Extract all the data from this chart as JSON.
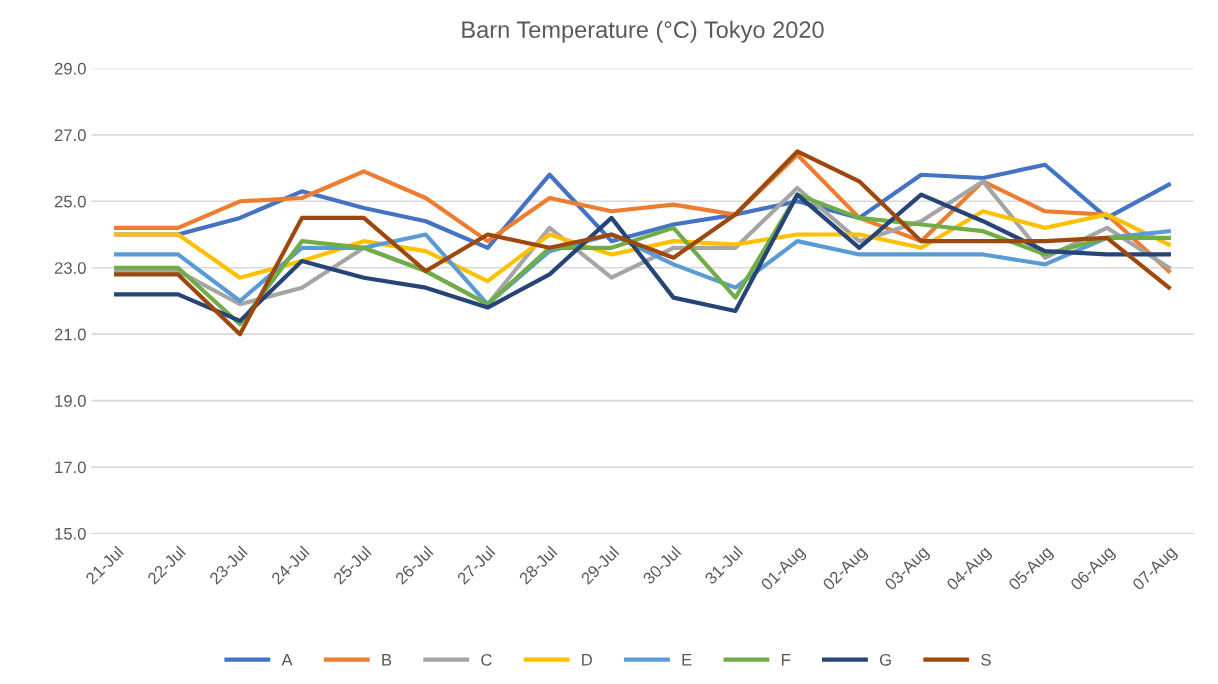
{
  "chart_data": {
    "type": "line",
    "title": "Barn Temperature (°C) Tokyo 2020",
    "categories": [
      "21-Jul",
      "22-Jul",
      "23-Jul",
      "24-Jul",
      "25-Jul",
      "26-Jul",
      "27-Jul",
      "28-Jul",
      "29-Jul",
      "30-Jul",
      "31-Jul",
      "01-Aug",
      "02-Aug",
      "03-Aug",
      "04-Aug",
      "05-Aug",
      "06-Aug",
      "07-Aug"
    ],
    "series": [
      {
        "name": "A",
        "color": "#4472c4",
        "values": [
          24.0,
          24.0,
          24.5,
          25.3,
          24.8,
          24.4,
          23.6,
          25.8,
          23.8,
          24.3,
          24.6,
          25.0,
          24.5,
          25.8,
          25.7,
          26.1,
          24.5,
          25.5
        ]
      },
      {
        "name": "B",
        "color": "#ed7d31",
        "values": [
          24.2,
          24.2,
          25.0,
          25.1,
          25.9,
          25.1,
          23.8,
          25.1,
          24.7,
          24.9,
          24.6,
          26.4,
          24.5,
          23.8,
          25.6,
          24.7,
          24.6,
          22.9
        ]
      },
      {
        "name": "C",
        "color": "#a5a5a5",
        "values": [
          22.9,
          22.9,
          21.9,
          22.4,
          23.6,
          22.9,
          21.9,
          24.2,
          22.7,
          23.6,
          23.6,
          25.4,
          23.8,
          24.4,
          25.6,
          23.3,
          24.2,
          23.0
        ]
      },
      {
        "name": "D",
        "color": "#ffc000",
        "values": [
          24.0,
          24.0,
          22.7,
          23.2,
          23.8,
          23.5,
          22.6,
          24.0,
          23.4,
          23.8,
          23.7,
          24.0,
          24.0,
          23.6,
          24.7,
          24.2,
          24.6,
          23.7
        ]
      },
      {
        "name": "E",
        "color": "#5b9bd5",
        "values": [
          23.4,
          23.4,
          22.0,
          23.6,
          23.6,
          24.0,
          21.9,
          23.5,
          24.0,
          23.1,
          22.4,
          23.8,
          23.4,
          23.4,
          23.4,
          23.1,
          23.9,
          24.1
        ]
      },
      {
        "name": "F",
        "color": "#70ad47",
        "values": [
          23.0,
          23.0,
          21.3,
          23.8,
          23.6,
          22.9,
          21.9,
          23.6,
          23.6,
          24.2,
          22.1,
          25.2,
          24.5,
          24.3,
          24.1,
          23.4,
          23.9,
          23.9
        ]
      },
      {
        "name": "G",
        "color": "#264478",
        "values": [
          22.2,
          22.2,
          21.4,
          23.2,
          22.7,
          22.4,
          21.8,
          22.8,
          24.5,
          22.1,
          21.7,
          25.2,
          23.6,
          25.2,
          24.4,
          23.5,
          23.4,
          23.4
        ]
      },
      {
        "name": "S",
        "color": "#9e480e",
        "values": [
          22.8,
          22.8,
          21.0,
          24.5,
          24.5,
          22.9,
          24.0,
          23.6,
          24.0,
          23.3,
          24.6,
          26.5,
          25.6,
          23.8,
          23.8,
          23.8,
          23.9,
          22.4
        ]
      }
    ],
    "ylim": [
      15,
      29
    ],
    "yticks": [
      {
        "value": 15,
        "label": "15.0"
      },
      {
        "value": 17,
        "label": "17.0"
      },
      {
        "value": 19,
        "label": "19.0"
      },
      {
        "value": 21,
        "label": "21.0"
      },
      {
        "value": 23,
        "label": "23.0"
      },
      {
        "value": 25,
        "label": "25.0"
      },
      {
        "value": 27,
        "label": "27.0"
      },
      {
        "value": 29,
        "label": "29.0"
      }
    ],
    "grid": "y",
    "legend": "bottom",
    "marker": "none",
    "line_style": "solid"
  }
}
